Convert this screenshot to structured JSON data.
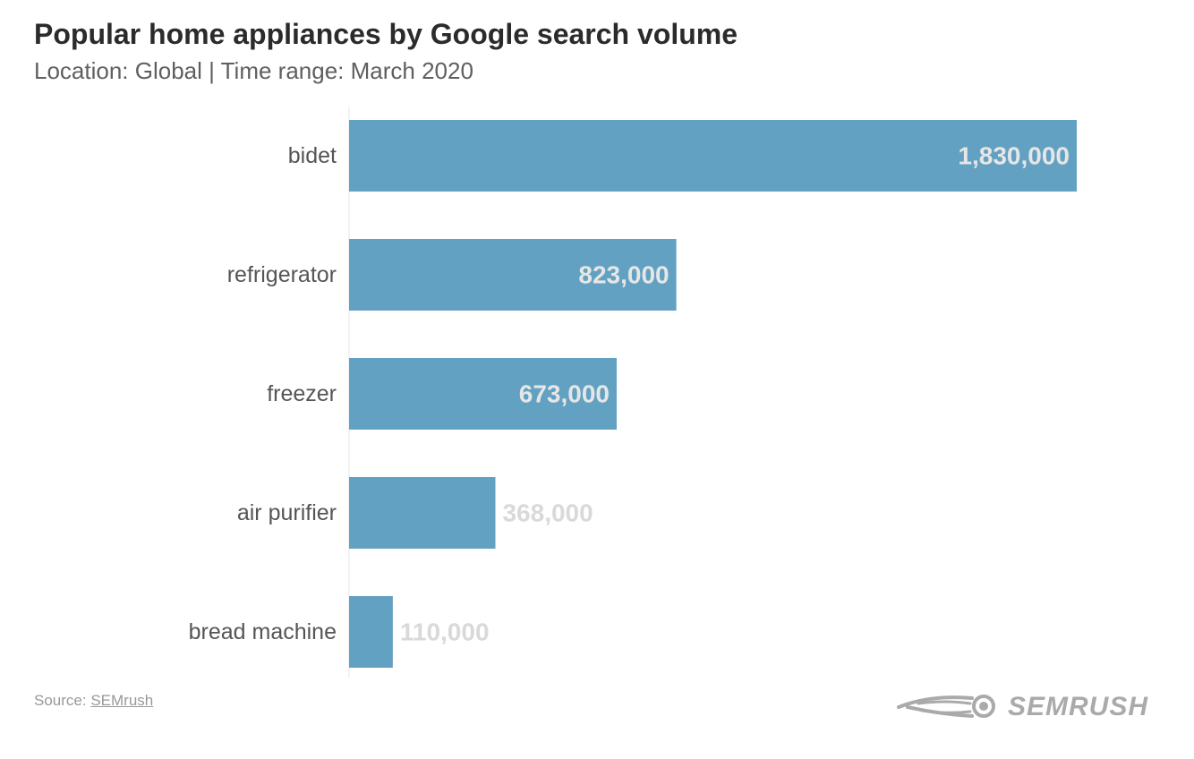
{
  "chart_data": {
    "type": "bar",
    "orientation": "horizontal",
    "title": "Popular home appliances by Google search volume",
    "subtitle": "Location: Global | Time range: March 2020",
    "categories": [
      "bidet",
      "refrigerator",
      "freezer",
      "air purifier",
      "bread machine"
    ],
    "values": [
      1830000,
      823000,
      673000,
      368000,
      110000
    ],
    "value_labels": [
      "1,830,000",
      "823,000",
      "673,000",
      "368,000",
      "110,000"
    ],
    "xlim": [
      0,
      1830000
    ],
    "grid": false,
    "legend": "none",
    "bar_color": "#62a1c2"
  },
  "footer": {
    "source_prefix": "Source:",
    "source_link": "SEMrush"
  },
  "logo": {
    "text": "SEMRUSH",
    "color": "#a9aaaa"
  }
}
